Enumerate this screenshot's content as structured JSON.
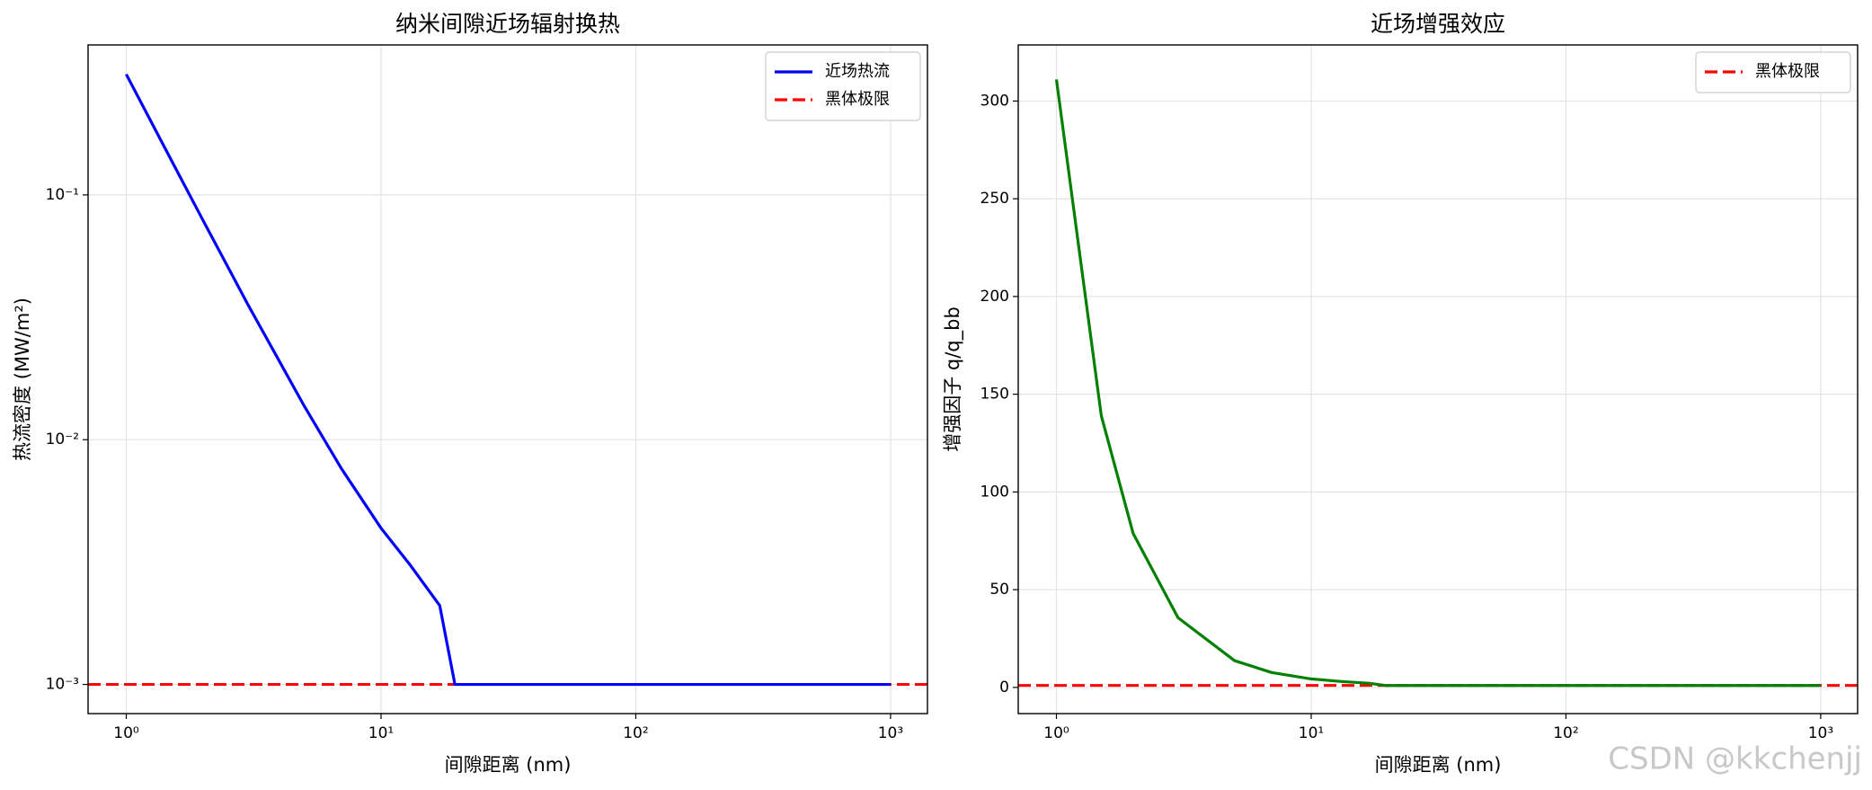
{
  "chart_data": [
    {
      "type": "line",
      "title": "纳米间隙近场辐射换热",
      "xlabel": "间隙距离 (nm)",
      "ylabel": "热流密度 (MW/m²)",
      "x": [
        1,
        1.5,
        2,
        3,
        5,
        7,
        10,
        13,
        17,
        19.5,
        30,
        50,
        100,
        200,
        500,
        1000
      ],
      "series": [
        {
          "name": "近场热流",
          "color": "#0000ff",
          "linestyle": "solid",
          "values": [
            0.311,
            0.139,
            0.0788,
            0.0357,
            0.0137,
            0.0076,
            0.00435,
            0.00308,
            0.0021,
            0.001,
            0.001,
            0.001,
            0.001,
            0.001,
            0.001,
            0.001
          ]
        }
      ],
      "hlines": [
        {
          "name": "黑体极限",
          "color": "#ff0000",
          "linestyle": "dashed",
          "value": 0.001
        }
      ],
      "xlim": [
        0.708,
        1396
      ],
      "ylim": [
        0.00076,
        0.41
      ],
      "xlog": true,
      "ylog": true,
      "xticks": [
        {
          "value": 1,
          "label": "10⁰"
        },
        {
          "value": 10,
          "label": "10¹"
        },
        {
          "value": 100,
          "label": "10²"
        },
        {
          "value": 1000,
          "label": "10³"
        }
      ],
      "yticks": [
        {
          "value": 0.001,
          "label": "10⁻³"
        },
        {
          "value": 0.01,
          "label": "10⁻²"
        },
        {
          "value": 0.1,
          "label": "10⁻¹"
        }
      ],
      "grid": true,
      "legend": "upper right"
    },
    {
      "type": "line",
      "title": "近场增强效应",
      "xlabel": "间隙距离 (nm)",
      "ylabel": "增强因子 q/q_bb",
      "x": [
        1,
        1.5,
        2,
        3,
        5,
        7,
        10,
        13,
        17,
        19.5,
        30,
        50,
        100,
        200,
        500,
        1000
      ],
      "series": [
        {
          "color": "#008000",
          "linestyle": "solid",
          "values": [
            311,
            139,
            78.8,
            35.7,
            13.7,
            7.6,
            4.35,
            3.08,
            2.1,
            1,
            1,
            1,
            1,
            1,
            1,
            1
          ]
        }
      ],
      "hlines": [
        {
          "name": "黑体极限",
          "color": "#ff0000",
          "linestyle": "dashed",
          "value": 1
        }
      ],
      "xlim": [
        0.708,
        1396
      ],
      "ylim": [
        -13.4,
        328.7
      ],
      "xlog": true,
      "ylog": false,
      "xticks": [
        {
          "value": 1,
          "label": "10⁰"
        },
        {
          "value": 10,
          "label": "10¹"
        },
        {
          "value": 100,
          "label": "10²"
        },
        {
          "value": 1000,
          "label": "10³"
        }
      ],
      "yticks": [
        0,
        50,
        100,
        150,
        200,
        250,
        300
      ],
      "grid": true,
      "legend": "upper right"
    }
  ],
  "watermark": "CSDN @kkchenjj"
}
